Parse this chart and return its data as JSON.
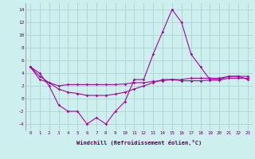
{
  "title": "",
  "xlabel": "Windchill (Refroidissement éolien,°C)",
  "background_color": "#cdf0ee",
  "line_color": "#aa00aa",
  "grid_color": "#aacccc",
  "ylim": [
    -5,
    15
  ],
  "xlim": [
    -0.5,
    23.5
  ],
  "yticks": [
    -4,
    -2,
    0,
    2,
    4,
    6,
    8,
    10,
    12,
    14
  ],
  "xticks": [
    0,
    1,
    2,
    3,
    4,
    5,
    6,
    7,
    8,
    9,
    10,
    11,
    12,
    13,
    14,
    15,
    16,
    17,
    18,
    19,
    20,
    21,
    22,
    23
  ],
  "series1": [
    5,
    4,
    2,
    -1,
    -2,
    -2,
    -4,
    -3,
    -4,
    -2,
    -0.5,
    3,
    3,
    7,
    10.5,
    14,
    12,
    7,
    5,
    3,
    3,
    3.5,
    3.5,
    3
  ],
  "series2": [
    5,
    3,
    2.5,
    2,
    2.2,
    2.2,
    2.2,
    2.2,
    2.2,
    2.2,
    2.3,
    2.5,
    2.5,
    2.7,
    2.8,
    3,
    2.8,
    2.8,
    2.8,
    2.9,
    2.9,
    3.2,
    3.2,
    3.2
  ],
  "series3": [
    5,
    3.5,
    2.5,
    1.5,
    1,
    0.8,
    0.5,
    0.5,
    0.5,
    0.7,
    1,
    1.5,
    2,
    2.5,
    3,
    3,
    3,
    3.2,
    3.2,
    3.2,
    3.2,
    3.5,
    3.5,
    3.5
  ]
}
